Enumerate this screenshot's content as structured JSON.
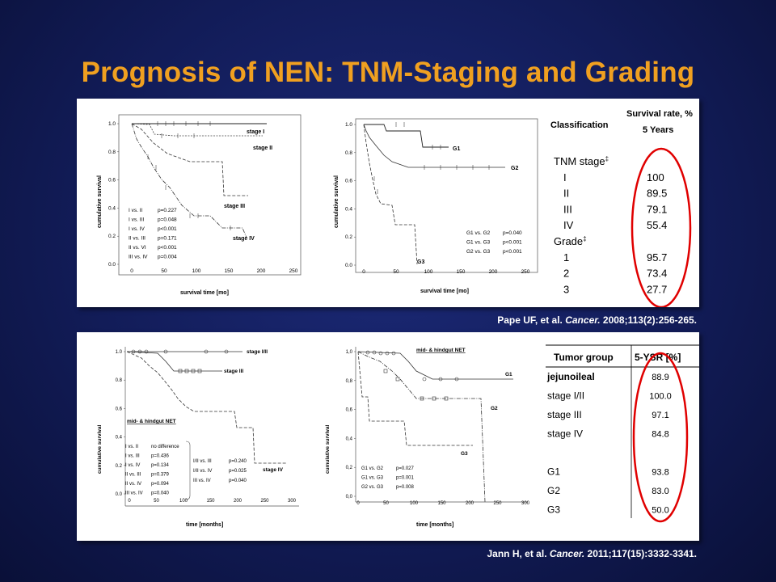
{
  "slide": {
    "title": "Prognosis of NEN: TNM-Staging and Grading",
    "citation1": {
      "authors": "Pape UF, et al. ",
      "journal": "Cancer.",
      "details": " 2008;113(2):256-265."
    },
    "citation2": {
      "authors": "Jann H, et al. ",
      "journal": "Cancer.",
      "details": " 2011;117(15):3332-3341."
    }
  },
  "panel1": {
    "plot_tnm": {
      "ylabel": "cumulative survival",
      "xlabel": "survival time [mo]",
      "yticks": [
        "0.0",
        "0.2",
        "0.4",
        "0.6",
        "0.8",
        "1.0"
      ],
      "xticks": [
        "0",
        "50",
        "100",
        "150",
        "200",
        "250"
      ],
      "curve_labels": [
        "stage I",
        "stage II",
        "stage III",
        "stage IV"
      ],
      "stats": [
        [
          "I vs. II",
          "p=0.227"
        ],
        [
          "I vs. III",
          "p=0.048"
        ],
        [
          "I vs. IV",
          "p<0.001"
        ],
        [
          "II vs. III",
          "p=0.171"
        ],
        [
          "II vs. VI",
          "p<0.001"
        ],
        [
          "III vs. IV",
          "p=0.004"
        ]
      ]
    },
    "plot_grade": {
      "ylabel": "cumulative survival",
      "xlabel": "survival time [mo]",
      "yticks": [
        "0.0",
        "0.2",
        "0.4",
        "0.6",
        "0.8",
        "1.0"
      ],
      "xticks": [
        "0",
        "50",
        "100",
        "150",
        "200",
        "250"
      ],
      "curve_labels": [
        "G1",
        "G2",
        "G3"
      ],
      "stats": [
        [
          "G1 vs. G2",
          "p=0.040"
        ],
        [
          "G1 vs. G3",
          "p<0.001"
        ],
        [
          "G2 vs. G3",
          "p<0.001"
        ]
      ]
    },
    "table": {
      "col1": "Classification",
      "col2a": "Survival rate, %",
      "col2b": "5 Years",
      "rows": [
        {
          "label": "TNM stage",
          "value": "",
          "sup": "‡",
          "section": true
        },
        {
          "label": "I",
          "value": "100"
        },
        {
          "label": "II",
          "value": "89.5"
        },
        {
          "label": "III",
          "value": "79.1"
        },
        {
          "label": "IV",
          "value": "55.4"
        },
        {
          "label": "Grade",
          "value": "",
          "sup": "‡",
          "section": true
        },
        {
          "label": "1",
          "value": "95.7"
        },
        {
          "label": "2",
          "value": "73.4"
        },
        {
          "label": "3",
          "value": "27.7"
        }
      ],
      "highlight_color": "#e00000"
    }
  },
  "panel2": {
    "plot_stage": {
      "ylabel": "cumulative survival",
      "xlabel": "time [months]",
      "yticks": [
        "0.0",
        "0.2",
        "0.4",
        "0.6",
        "0.8",
        "1.0"
      ],
      "xticks": [
        "0",
        "50",
        "100",
        "150",
        "200",
        "250",
        "300"
      ],
      "curve_labels": [
        "stage I/II",
        "stage III",
        "stage IV"
      ],
      "subtitle": "mid- & hindgut NET",
      "stats_left": [
        [
          "I vs. II",
          "no difference"
        ],
        [
          "I vs. III",
          "p=0.436"
        ],
        [
          "I vs. IV",
          "p=0.134"
        ],
        [
          "II vs. III",
          "p=0.379"
        ],
        [
          "II vs. IV",
          "p=0.094"
        ],
        [
          "III vs. IV",
          "p=0.040"
        ]
      ],
      "stats_right": [
        [
          "I/II vs. III",
          "p=0.240"
        ],
        [
          "I/II vs. IV",
          "p=0.025"
        ],
        [
          "III vs. IV",
          "p=0.040"
        ]
      ]
    },
    "plot_grade": {
      "ylabel": "cumulative survival",
      "xlabel": "time [months]",
      "yticks": [
        "0,0",
        "0,2",
        "0,4",
        "0,6",
        "0,8",
        "1,0"
      ],
      "xticks": [
        "0",
        "50",
        "100",
        "150",
        "200",
        "250",
        "300"
      ],
      "curve_labels": [
        "G1",
        "G2",
        "G3"
      ],
      "subtitle": "mid- & hindgut NET",
      "stats": [
        [
          "G1 vs. G2",
          "p=0.027"
        ],
        [
          "G1 vs. G3",
          "p=0.001"
        ],
        [
          "G2 vs. G3",
          "p=0.008"
        ]
      ]
    },
    "table": {
      "col1": "Tumor group",
      "col2": "5-YSR [%]",
      "rows": [
        {
          "label": "jejunoileal",
          "value": "88.9",
          "bold": true
        },
        {
          "label": "stage I/II",
          "value": "100.0"
        },
        {
          "label": "stage III",
          "value": "97.1"
        },
        {
          "label": "stage IV",
          "value": "84.8"
        },
        {
          "label": "",
          "value": ""
        },
        {
          "label": "G1",
          "value": "93.8"
        },
        {
          "label": "G2",
          "value": "83.0"
        },
        {
          "label": "G3",
          "value": "50.0"
        }
      ],
      "highlight_color": "#e00000"
    }
  }
}
